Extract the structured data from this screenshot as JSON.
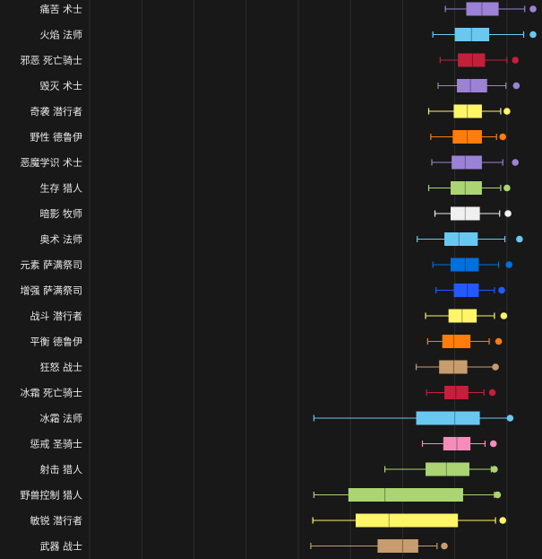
{
  "chart_data": {
    "type": "boxplot",
    "orientation": "horizontal",
    "grid": true,
    "categories": [
      "痛苦 术士",
      "火焰 法师",
      "邪恶 死亡骑士",
      "毁灭 术士",
      "奇袭 潜行者",
      "野性 德鲁伊",
      "恶魔学识 术士",
      "生存 猎人",
      "暗影 牧师",
      "奥术 法师",
      "元素 萨满祭司",
      "增强 萨满祭司",
      "战斗 潜行者",
      "平衡 德鲁伊",
      "狂怒 战士",
      "冰霜 死亡骑士",
      "冰霜 法师",
      "惩戒 圣骑士",
      "射击 猎人",
      "野兽控制 猎人",
      "敏锐 潜行者",
      "武器 战士"
    ],
    "xlim": [
      -100,
      325
    ],
    "series": [
      {
        "category": "痛苦 术士",
        "color": "#9b82d6",
        "min": 241,
        "q1": 261,
        "median": 276,
        "q3": 292,
        "max": 317,
        "outlier": 325
      },
      {
        "category": "火焰 法师",
        "color": "#69c8f0",
        "min": 229,
        "q1": 250,
        "median": 266,
        "q3": 283,
        "max": 316,
        "outlier": 325
      },
      {
        "category": "邪恶 死亡骑士",
        "color": "#c41f3b",
        "min": 236,
        "q1": 253,
        "median": 267,
        "q3": 279,
        "max": 300,
        "outlier": 308
      },
      {
        "category": "毁灭 术士",
        "color": "#9b82d6",
        "min": 234,
        "q1": 252,
        "median": 265,
        "q3": 281,
        "max": 299,
        "outlier": 309
      },
      {
        "category": "奇袭 潜行者",
        "color": "#fff569",
        "min": 225,
        "q1": 249,
        "median": 262,
        "q3": 276,
        "max": 294,
        "outlier": 300
      },
      {
        "category": "野性 德鲁伊",
        "color": "#ff7d0a",
        "min": 227,
        "q1": 248,
        "median": 262,
        "q3": 276,
        "max": 290,
        "outlier": 296
      },
      {
        "category": "恶魔学识 术士",
        "color": "#9b82d6",
        "min": 228,
        "q1": 247,
        "median": 260,
        "q3": 276,
        "max": 296,
        "outlier": 308
      },
      {
        "category": "生存 猎人",
        "color": "#abd473",
        "min": 225,
        "q1": 246,
        "median": 260,
        "q3": 276,
        "max": 294,
        "outlier": 300
      },
      {
        "category": "暗影 牧师",
        "color": "#f0f0f0",
        "min": 231,
        "q1": 246,
        "median": 260,
        "q3": 274,
        "max": 293,
        "outlier": 301
      },
      {
        "category": "奥术 法师",
        "color": "#69c8f0",
        "min": 214,
        "q1": 240,
        "median": 254,
        "q3": 272,
        "max": 298,
        "outlier": 312
      },
      {
        "category": "元素 萨满祭司",
        "color": "#0070de",
        "min": 229,
        "q1": 246,
        "median": 260,
        "q3": 273,
        "max": 292,
        "outlier": 302
      },
      {
        "category": "增强 萨满祭司",
        "color": "#2459ff",
        "min": 232,
        "q1": 249,
        "median": 262,
        "q3": 273,
        "max": 288,
        "outlier": 295
      },
      {
        "category": "战斗 潜行者",
        "color": "#fff569",
        "min": 222,
        "q1": 244,
        "median": 257,
        "q3": 271,
        "max": 288,
        "outlier": 297
      },
      {
        "category": "平衡 德鲁伊",
        "color": "#ff7d0a",
        "min": 224,
        "q1": 238,
        "median": 249,
        "q3": 265,
        "max": 283,
        "outlier": 292
      },
      {
        "category": "狂怒 战士",
        "color": "#c79c6e",
        "min": 213,
        "q1": 235,
        "median": 249,
        "q3": 262,
        "max": 288,
        "outlier": 289
      },
      {
        "category": "冰霜 死亡骑士",
        "color": "#c41f3b",
        "min": 223,
        "q1": 240,
        "median": 251,
        "q3": 263,
        "max": 278,
        "outlier": 286
      },
      {
        "category": "冰霜 法师",
        "color": "#69c8f0",
        "min": 115,
        "q1": 213,
        "median": 250,
        "q3": 274,
        "max": 302,
        "outlier": 303
      },
      {
        "category": "惩戒 圣骑士",
        "color": "#f58cba",
        "min": 219,
        "q1": 239,
        "median": 252,
        "q3": 265,
        "max": 279,
        "outlier": 287
      },
      {
        "category": "射击 猎人",
        "color": "#abd473",
        "min": 183,
        "q1": 222,
        "median": 242,
        "q3": 264,
        "max": 285,
        "outlier": 288
      },
      {
        "category": "野兽控制 猎人",
        "color": "#abd473",
        "min": 115,
        "q1": 148,
        "median": 183,
        "q3": 258,
        "max": 288,
        "outlier": 291
      },
      {
        "category": "敏锐 潜行者",
        "color": "#fff569",
        "min": 114,
        "q1": 155,
        "median": 187,
        "q3": 253,
        "max": 289,
        "outlier": 296
      },
      {
        "category": "武器 战士",
        "color": "#c79c6e",
        "min": 112,
        "q1": 176,
        "median": 200,
        "q3": 215,
        "max": 233,
        "outlier": 240
      }
    ]
  }
}
